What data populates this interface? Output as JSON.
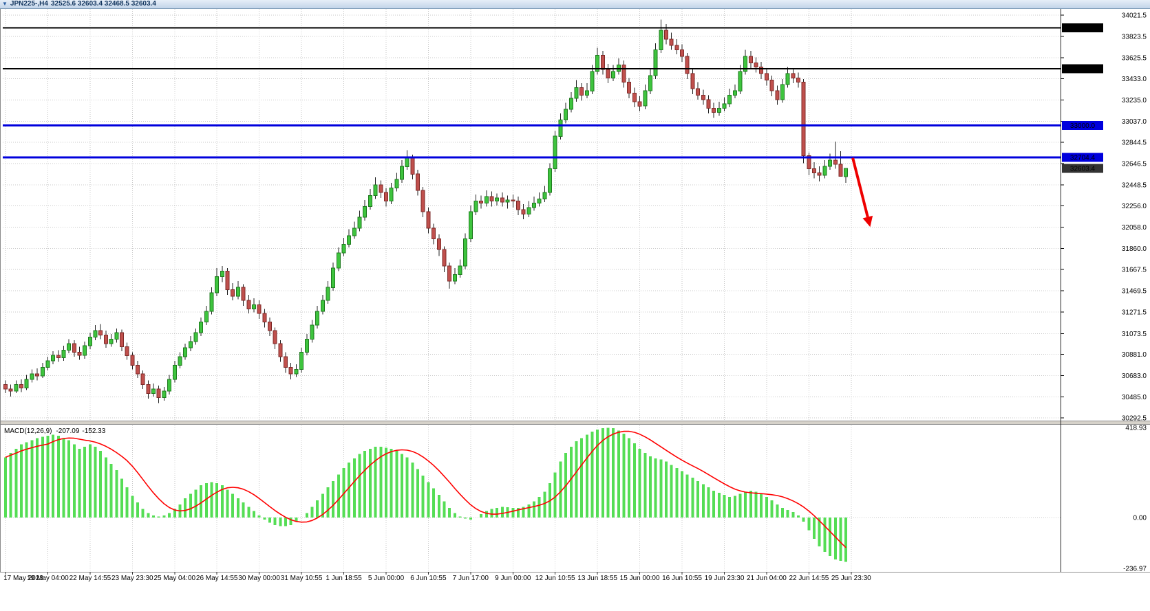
{
  "window": {
    "title_symbol": "JPN225-,H4",
    "title_ohlc": "32525.6 32603.4 32468.5 32603.4"
  },
  "colors": {
    "bull_fill": "#3ec43e",
    "bull_stroke": "#1e7a1e",
    "bear_fill": "#c0504d",
    "bear_stroke": "#7e2a28",
    "wick": "#222222",
    "grid": "#c9c9c9",
    "level_black": "#000000",
    "level_blue": "#0000dd",
    "current_price_bg": "#333333",
    "macd_hist": "#55dd55",
    "macd_signal": "#ff0000",
    "arrow": "#ee0000",
    "axis_text": "#000000"
  },
  "chart_data": {
    "type": "candlestick_with_macd",
    "symbol": "JPN225-",
    "timeframe": "H4",
    "ohlc_display": {
      "open": "32525.6",
      "high": "32603.4",
      "low": "32468.5",
      "close": "32603.4"
    },
    "price_pane": {
      "y_ticks": [
        "34021.5",
        "33823.5",
        "33625.5",
        "33433.0",
        "33235.0",
        "33037.0",
        "32844.5",
        "32646.5",
        "32448.5",
        "32256.0",
        "32058.0",
        "31860.0",
        "31667.5",
        "31469.5",
        "31271.5",
        "31073.5",
        "30881.0",
        "30683.0",
        "30485.0",
        "30292.5"
      ],
      "level_lines": [
        {
          "price": 33905.1,
          "label": "33905.1",
          "type": "black"
        },
        {
          "price": 33525.9,
          "label": "33525.9",
          "type": "black"
        },
        {
          "price": 33000.0,
          "label": "33000.0",
          "type": "blue"
        },
        {
          "price": 32704.4,
          "label": "32704.4",
          "type": "blue"
        }
      ],
      "current_price": {
        "price": 32603.4,
        "label": "32603.4"
      },
      "candles": [
        [
          30600,
          30640,
          30520,
          30560
        ],
        [
          30560,
          30600,
          30490,
          30540
        ],
        [
          30540,
          30640,
          30520,
          30600
        ],
        [
          30600,
          30650,
          30530,
          30570
        ],
        [
          30570,
          30690,
          30550,
          30650
        ],
        [
          30650,
          30740,
          30620,
          30700
        ],
        [
          30700,
          30750,
          30640,
          30680
        ],
        [
          30680,
          30800,
          30660,
          30760
        ],
        [
          30760,
          30860,
          30730,
          30820
        ],
        [
          30820,
          30910,
          30790,
          30870
        ],
        [
          30870,
          30920,
          30810,
          30850
        ],
        [
          30850,
          30960,
          30820,
          30920
        ],
        [
          30920,
          31020,
          30890,
          30980
        ],
        [
          30980,
          31010,
          30860,
          30900
        ],
        [
          30900,
          30950,
          30830,
          30870
        ],
        [
          30870,
          31000,
          30840,
          30960
        ],
        [
          30960,
          31080,
          30930,
          31040
        ],
        [
          31040,
          31150,
          31010,
          31100
        ],
        [
          31100,
          31160,
          31020,
          31060
        ],
        [
          31060,
          31100,
          30940,
          30980
        ],
        [
          30980,
          31070,
          30950,
          31020
        ],
        [
          31020,
          31120,
          30990,
          31080
        ],
        [
          31080,
          31110,
          30910,
          30950
        ],
        [
          30950,
          30990,
          30830,
          30870
        ],
        [
          30870,
          30900,
          30740,
          30780
        ],
        [
          30780,
          30820,
          30660,
          30700
        ],
        [
          30700,
          30730,
          30560,
          30600
        ],
        [
          30600,
          30640,
          30470,
          30520
        ],
        [
          30520,
          30610,
          30490,
          30560
        ],
        [
          30560,
          30590,
          30430,
          30480
        ],
        [
          30480,
          30580,
          30450,
          30540
        ],
        [
          30540,
          30690,
          30510,
          30650
        ],
        [
          30650,
          30820,
          30620,
          30780
        ],
        [
          30780,
          30900,
          30750,
          30860
        ],
        [
          30860,
          30980,
          30830,
          30940
        ],
        [
          30940,
          31050,
          30910,
          31000
        ],
        [
          31000,
          31120,
          30970,
          31080
        ],
        [
          31080,
          31220,
          31050,
          31180
        ],
        [
          31180,
          31330,
          31150,
          31280
        ],
        [
          31280,
          31500,
          31250,
          31450
        ],
        [
          31450,
          31680,
          31420,
          31600
        ],
        [
          31600,
          31700,
          31550,
          31650
        ],
        [
          31650,
          31680,
          31430,
          31480
        ],
        [
          31480,
          31540,
          31380,
          31420
        ],
        [
          31420,
          31560,
          31390,
          31500
        ],
        [
          31500,
          31530,
          31330,
          31380
        ],
        [
          31380,
          31430,
          31260,
          31300
        ],
        [
          31300,
          31400,
          31270,
          31340
        ],
        [
          31340,
          31380,
          31210,
          31260
        ],
        [
          31260,
          31300,
          31130,
          31180
        ],
        [
          31180,
          31220,
          31050,
          31100
        ],
        [
          31100,
          31130,
          30930,
          30980
        ],
        [
          30980,
          31010,
          30810,
          30860
        ],
        [
          30860,
          30900,
          30710,
          30760
        ],
        [
          30760,
          30800,
          30650,
          30700
        ],
        [
          30700,
          30790,
          30670,
          30740
        ],
        [
          30740,
          30940,
          30710,
          30900
        ],
        [
          30900,
          31070,
          30870,
          31020
        ],
        [
          31020,
          31200,
          30990,
          31150
        ],
        [
          31150,
          31330,
          31120,
          31280
        ],
        [
          31280,
          31430,
          31250,
          31380
        ],
        [
          31380,
          31560,
          31350,
          31500
        ],
        [
          31500,
          31730,
          31470,
          31680
        ],
        [
          31680,
          31870,
          31650,
          31820
        ],
        [
          31820,
          31960,
          31790,
          31900
        ],
        [
          31900,
          32040,
          31870,
          31980
        ],
        [
          31980,
          32110,
          31950,
          32050
        ],
        [
          32050,
          32210,
          32020,
          32150
        ],
        [
          32150,
          32310,
          32120,
          32250
        ],
        [
          32250,
          32410,
          32220,
          32350
        ],
        [
          32350,
          32520,
          32320,
          32450
        ],
        [
          32450,
          32490,
          32330,
          32380
        ],
        [
          32380,
          32420,
          32250,
          32300
        ],
        [
          32300,
          32470,
          32270,
          32420
        ],
        [
          32420,
          32560,
          32390,
          32500
        ],
        [
          32500,
          32680,
          32470,
          32620
        ],
        [
          32620,
          32770,
          32590,
          32700
        ],
        [
          32700,
          32730,
          32500,
          32550
        ],
        [
          32550,
          32590,
          32350,
          32400
        ],
        [
          32400,
          32430,
          32150,
          32200
        ],
        [
          32200,
          32240,
          32000,
          32050
        ],
        [
          32050,
          32090,
          31900,
          31950
        ],
        [
          31950,
          31990,
          31790,
          31850
        ],
        [
          31850,
          31880,
          31640,
          31700
        ],
        [
          31700,
          31730,
          31490,
          31560
        ],
        [
          31560,
          31680,
          31530,
          31620
        ],
        [
          31620,
          31760,
          31590,
          31700
        ],
        [
          31700,
          32000,
          31670,
          31950
        ],
        [
          31950,
          32260,
          31920,
          32200
        ],
        [
          32200,
          32360,
          32170,
          32300
        ],
        [
          32300,
          32350,
          32230,
          32280
        ],
        [
          32280,
          32400,
          32250,
          32340
        ],
        [
          32340,
          32390,
          32250,
          32300
        ],
        [
          32300,
          32370,
          32260,
          32330
        ],
        [
          32330,
          32380,
          32250,
          32290
        ],
        [
          32290,
          32350,
          32230,
          32310
        ],
        [
          32310,
          32360,
          32240,
          32300
        ],
        [
          32300,
          32340,
          32170,
          32220
        ],
        [
          32220,
          32270,
          32130,
          32180
        ],
        [
          32180,
          32300,
          32150,
          32240
        ],
        [
          32240,
          32340,
          32210,
          32280
        ],
        [
          32280,
          32380,
          32250,
          32320
        ],
        [
          32320,
          32440,
          32290,
          32380
        ],
        [
          32380,
          32650,
          32350,
          32600
        ],
        [
          32600,
          32950,
          32570,
          32900
        ],
        [
          32900,
          33110,
          32870,
          33050
        ],
        [
          33050,
          33210,
          33020,
          33150
        ],
        [
          33150,
          33310,
          33120,
          33250
        ],
        [
          33250,
          33420,
          33220,
          33350
        ],
        [
          33350,
          33390,
          33230,
          33280
        ],
        [
          33280,
          33390,
          33250,
          33320
        ],
        [
          33320,
          33560,
          33290,
          33500
        ],
        [
          33500,
          33720,
          33470,
          33650
        ],
        [
          33650,
          33690,
          33470,
          33520
        ],
        [
          33520,
          33570,
          33390,
          33440
        ],
        [
          33440,
          33560,
          33410,
          33500
        ],
        [
          33500,
          33620,
          33470,
          33560
        ],
        [
          33560,
          33600,
          33350,
          33400
        ],
        [
          33400,
          33440,
          33250,
          33300
        ],
        [
          33300,
          33350,
          33170,
          33220
        ],
        [
          33220,
          33270,
          33130,
          33180
        ],
        [
          33180,
          33380,
          33150,
          33320
        ],
        [
          33320,
          33520,
          33290,
          33460
        ],
        [
          33460,
          33760,
          33430,
          33700
        ],
        [
          33700,
          33980,
          33670,
          33880
        ],
        [
          33880,
          33940,
          33750,
          33800
        ],
        [
          33800,
          33860,
          33700,
          33740
        ],
        [
          33740,
          33800,
          33660,
          33700
        ],
        [
          33700,
          33750,
          33590,
          33640
        ],
        [
          33640,
          33670,
          33430,
          33480
        ],
        [
          33480,
          33520,
          33290,
          33340
        ],
        [
          33340,
          33400,
          33240,
          33280
        ],
        [
          33280,
          33330,
          33190,
          33240
        ],
        [
          33240,
          33280,
          33110,
          33160
        ],
        [
          33160,
          33210,
          33070,
          33120
        ],
        [
          33120,
          33220,
          33090,
          33160
        ],
        [
          33160,
          33260,
          33130,
          33200
        ],
        [
          33200,
          33340,
          33170,
          33280
        ],
        [
          33280,
          33380,
          33250,
          33320
        ],
        [
          33320,
          33560,
          33290,
          33500
        ],
        [
          33500,
          33700,
          33470,
          33640
        ],
        [
          33640,
          33690,
          33530,
          33580
        ],
        [
          33580,
          33630,
          33490,
          33540
        ],
        [
          33540,
          33590,
          33430,
          33480
        ],
        [
          33480,
          33530,
          33370,
          33420
        ],
        [
          33420,
          33460,
          33270,
          33320
        ],
        [
          33320,
          33370,
          33190,
          33240
        ],
        [
          33240,
          33430,
          33210,
          33380
        ],
        [
          33380,
          33540,
          33350,
          33480
        ],
        [
          33480,
          33520,
          33390,
          33440
        ],
        [
          33440,
          33490,
          33350,
          33400
        ],
        [
          33400,
          33430,
          32650,
          32720
        ],
        [
          32720,
          32750,
          32540,
          32600
        ],
        [
          32600,
          32660,
          32510,
          32560
        ],
        [
          32560,
          32620,
          32480,
          32540
        ],
        [
          32540,
          32680,
          32510,
          32620
        ],
        [
          32620,
          32740,
          32590,
          32680
        ],
        [
          32680,
          32850,
          32600,
          32640
        ],
        [
          32640,
          32760,
          32610,
          32530
        ],
        [
          32525.6,
          32603.4,
          32468.5,
          32603.4
        ]
      ]
    },
    "macd_pane": {
      "label": "MACD(12,26,9)",
      "value_main": "-207.09",
      "value_signal": "-152.33",
      "y_ticks": [
        "418.93",
        "0.00",
        "-236.97"
      ],
      "histogram": [
        280,
        300,
        320,
        340,
        350,
        360,
        370,
        375,
        380,
        385,
        380,
        370,
        360,
        340,
        320,
        330,
        340,
        330,
        310,
        280,
        250,
        220,
        180,
        140,
        100,
        70,
        40,
        20,
        10,
        5,
        10,
        20,
        40,
        60,
        90,
        110,
        130,
        150,
        160,
        165,
        160,
        150,
        130,
        110,
        90,
        70,
        50,
        30,
        10,
        -10,
        -25,
        -35,
        -40,
        -40,
        -35,
        -20,
        0,
        20,
        50,
        80,
        110,
        140,
        170,
        200,
        230,
        255,
        275,
        295,
        310,
        320,
        330,
        330,
        325,
        320,
        310,
        295,
        280,
        255,
        225,
        195,
        165,
        135,
        105,
        75,
        45,
        20,
        5,
        -5,
        -10,
        0,
        15,
        30,
        40,
        45,
        50,
        48,
        45,
        45,
        50,
        60,
        75,
        95,
        120,
        160,
        210,
        260,
        300,
        330,
        355,
        370,
        385,
        400,
        410,
        415,
        418,
        415,
        405,
        390,
        370,
        345,
        320,
        300,
        285,
        275,
        270,
        260,
        245,
        230,
        215,
        200,
        185,
        170,
        155,
        140,
        125,
        115,
        105,
        95,
        100,
        110,
        120,
        125,
        120,
        110,
        95,
        80,
        60,
        45,
        35,
        25,
        10,
        -20,
        -60,
        -100,
        -135,
        -160,
        -180,
        -195,
        -202,
        -207.09
      ]
    },
    "x_axis": {
      "candles_per_label": 8,
      "labels": [
        "17 May 2023",
        "19 May 04:00",
        "22 May 14:55",
        "23 May 23:30",
        "25 May 04:00",
        "26 May 14:55",
        "30 May 00:00",
        "31 May 10:55",
        "1 Jun 18:55",
        "5 Jun 00:00",
        "6 Jun 10:55",
        "7 Jun 17:00",
        "9 Jun 00:00",
        "12 Jun 10:55",
        "13 Jun 18:55",
        "15 Jun 00:00",
        "16 Jun 10:55",
        "19 Jun 23:30",
        "21 Jun 04:00",
        "22 Jun 14:55",
        "25 Jun 23:30"
      ]
    },
    "annotations": {
      "arrow": {
        "from_slot": 160.3,
        "from_price": 32700,
        "to_slot": 163.6,
        "to_price": 32060
      }
    }
  }
}
